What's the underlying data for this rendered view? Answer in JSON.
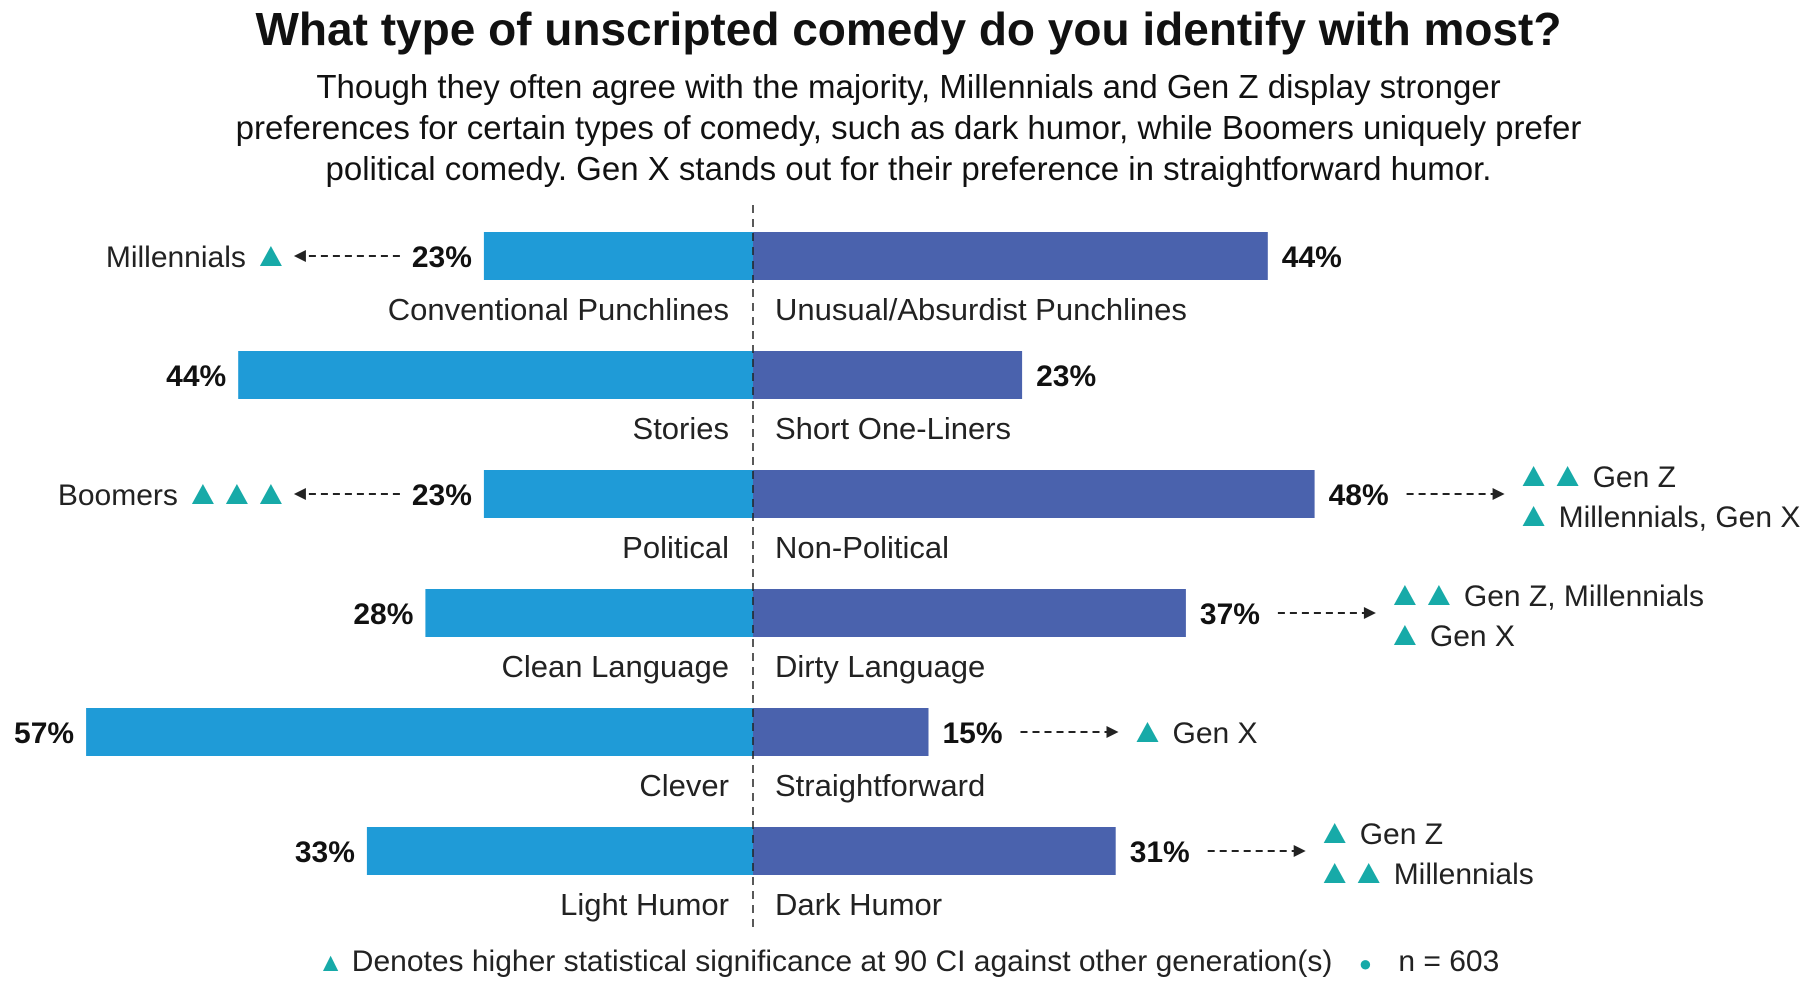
{
  "chart_data": {
    "type": "bar",
    "title": "What type of unscripted comedy do you identify with most?",
    "subtitle_lines": [
      "Though they often agree with the majority, Millennials and Gen Z display stronger",
      "preferences for certain types of comedy, such as dark humor, while Boomers uniquely prefer",
      "political comedy. Gen X stands out for their preference in straightforward humor."
    ],
    "colors": {
      "left": "#1f9bd7",
      "right": "#4a62ad",
      "accent": "#17aaa8"
    },
    "xlim": [
      0,
      60
    ],
    "rows": [
      {
        "left": {
          "label": "Conventional Punchlines",
          "value": 23,
          "value_label": "23%",
          "annotations": [
            {
              "text": "Millennials",
              "triangles": 1
            }
          ]
        },
        "right": {
          "label": "Unusual/Absurdist Punchlines",
          "value": 44,
          "value_label": "44%",
          "annotations": []
        }
      },
      {
        "left": {
          "label": "Stories",
          "value": 44,
          "value_label": "44%",
          "annotations": []
        },
        "right": {
          "label": "Short One-Liners",
          "value": 23,
          "value_label": "23%",
          "annotations": []
        }
      },
      {
        "left": {
          "label": "Political",
          "value": 23,
          "value_label": "23%",
          "annotations": [
            {
              "text": "Boomers",
              "triangles": 3
            }
          ]
        },
        "right": {
          "label": "Non-Political",
          "value": 48,
          "value_label": "48%",
          "annotations": [
            {
              "text": "Gen Z",
              "triangles": 2
            },
            {
              "text": "Millennials, Gen X",
              "triangles": 1
            }
          ]
        }
      },
      {
        "left": {
          "label": "Clean Language",
          "value": 28,
          "value_label": "28%",
          "annotations": []
        },
        "right": {
          "label": "Dirty Language",
          "value": 37,
          "value_label": "37%",
          "annotations": [
            {
              "text": "Gen Z, Millennials",
              "triangles": 2
            },
            {
              "text": "Gen X",
              "triangles": 1
            }
          ]
        }
      },
      {
        "left": {
          "label": "Clever",
          "value": 57,
          "value_label": "57%",
          "annotations": []
        },
        "right": {
          "label": "Straightforward",
          "value": 15,
          "value_label": "15%",
          "annotations": [
            {
              "text": "Gen X",
              "triangles": 1
            }
          ]
        }
      },
      {
        "left": {
          "label": "Light Humor",
          "value": 33,
          "value_label": "33%",
          "annotations": []
        },
        "right": {
          "label": "Dark Humor",
          "value": 31,
          "value_label": "31%",
          "annotations": [
            {
              "text": "Gen Z",
              "triangles": 1
            },
            {
              "text": "Millennials",
              "triangles": 2
            }
          ]
        }
      }
    ],
    "footer": {
      "note": "Denotes higher statistical significance at 90 CI against other generation(s)",
      "sample": "n = 603"
    }
  }
}
